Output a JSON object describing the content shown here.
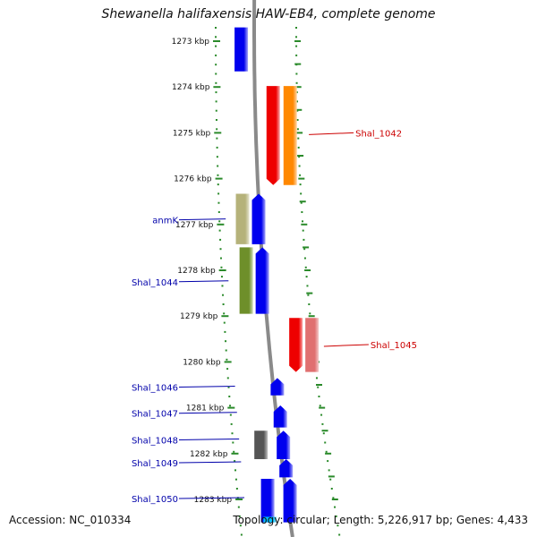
{
  "title": "Shewanella halifaxensis HAW-EB4, complete genome",
  "footer": {
    "accession": "Accession: NC_010334",
    "topology": "Topology: circular; Length: 5,226,917 bp; Genes: 4,433"
  },
  "ruler": [
    "1273 kbp",
    "1274 kbp",
    "1275 kbp",
    "1276 kbp",
    "1277 kbp",
    "1278 kbp",
    "1279 kbp",
    "1280 kbp",
    "1281 kbp",
    "1282 kbp",
    "1283 kbp"
  ],
  "genes": [
    {
      "id": "g-top-blue",
      "lane": 3,
      "start": 1272.7,
      "end": 1273.66,
      "dir": "none",
      "color": "#0000ee"
    },
    {
      "id": "g-red1",
      "lane": 5,
      "start": 1273.98,
      "end": 1276.14,
      "dir": "down",
      "color": "#ee0000"
    },
    {
      "id": "g-orange",
      "lane": 6,
      "start": 1273.98,
      "end": 1276.14,
      "dir": "none",
      "color": "#ff8800"
    },
    {
      "id": "g-anmk",
      "lane": 1,
      "start": 1276.33,
      "end": 1277.43,
      "dir": "none",
      "color": "#b5b27a"
    },
    {
      "id": "g-blue-a",
      "lane": 2,
      "start": 1276.33,
      "end": 1277.43,
      "dir": "up",
      "color": "#0000ee"
    },
    {
      "id": "g-olive",
      "lane": 1,
      "start": 1277.5,
      "end": 1278.95,
      "dir": "none",
      "color": "#6e8f2a"
    },
    {
      "id": "g-blue-b",
      "lane": 2,
      "start": 1277.5,
      "end": 1278.95,
      "dir": "up",
      "color": "#0000ee"
    },
    {
      "id": "g-red2",
      "lane": 7,
      "start": 1279.04,
      "end": 1280.22,
      "dir": "down",
      "color": "#ee0000"
    },
    {
      "id": "g-pink",
      "lane": 8,
      "start": 1279.04,
      "end": 1280.22,
      "dir": "none",
      "color": "#e07070"
    },
    {
      "id": "g-blue-c",
      "lane": 4,
      "start": 1280.35,
      "end": 1280.73,
      "dir": "up",
      "color": "#0000ee"
    },
    {
      "id": "g-blue-d",
      "lane": 4,
      "start": 1280.95,
      "end": 1281.43,
      "dir": "up",
      "color": "#0000ee"
    },
    {
      "id": "g-grey",
      "lane": 1,
      "start": 1281.5,
      "end": 1282.12,
      "dir": "none",
      "color": "#555555"
    },
    {
      "id": "g-blue-e",
      "lane": 4,
      "start": 1281.5,
      "end": 1282.12,
      "dir": "up",
      "color": "#0000ee"
    },
    {
      "id": "g-blue-f",
      "lane": 4,
      "start": 1282.12,
      "end": 1282.52,
      "dir": "up",
      "color": "#0000ee"
    },
    {
      "id": "g-blue-g",
      "lane": 1,
      "start": 1282.55,
      "end": 1283.5,
      "dir": "none",
      "color": "#0000ee"
    },
    {
      "id": "g-blue-h",
      "lane": 4,
      "start": 1282.55,
      "end": 1283.5,
      "dir": "up",
      "color": "#0000ee"
    },
    {
      "id": "g-cyan",
      "lane": 1,
      "start": 1283.38,
      "end": 1283.5,
      "dir": "none",
      "color": "#00bfff"
    }
  ],
  "labels": [
    {
      "text": "Shal_1042",
      "side": "right",
      "pos": 1275.0,
      "color": "#cc0000"
    },
    {
      "text": "Shal_1045",
      "side": "right",
      "pos": 1279.62,
      "color": "#cc0000"
    },
    {
      "text": "anmK",
      "side": "left",
      "pos": 1276.9,
      "color": "#0000aa"
    },
    {
      "text": "Shal_1044",
      "side": "left",
      "pos": 1278.25,
      "color": "#0000aa"
    },
    {
      "text": "Shal_1046",
      "side": "left",
      "pos": 1280.55,
      "color": "#0000aa"
    },
    {
      "text": "Shal_1047",
      "side": "left",
      "pos": 1281.12,
      "color": "#0000aa"
    },
    {
      "text": "Shal_1048",
      "side": "left",
      "pos": 1281.7,
      "color": "#0000aa"
    },
    {
      "text": "Shal_1049",
      "side": "left",
      "pos": 1282.2,
      "color": "#0000aa"
    },
    {
      "text": "Shal_1050",
      "side": "left",
      "pos": 1282.98,
      "color": "#0000aa"
    }
  ]
}
